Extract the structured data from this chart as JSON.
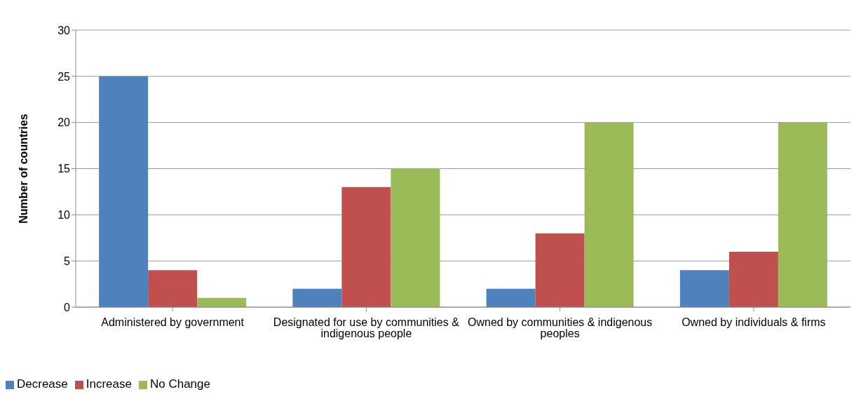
{
  "chart_data": {
    "type": "bar",
    "categories": [
      "Administered by government",
      "Designated for use by communities & indigenous people",
      "Owned by communities & indigenous peoples",
      "Owned by individuals & firms"
    ],
    "ylabel": "Number of countries",
    "ylim": [
      0,
      30
    ],
    "yticks": [
      0,
      5,
      10,
      15,
      20,
      25,
      30
    ],
    "grid": "y",
    "legend": "bottom left",
    "series": [
      {
        "name": "Decrease",
        "color": "#4f81bd",
        "values": [
          25,
          2,
          2,
          4
        ]
      },
      {
        "name": "Increase",
        "color": "#c0504d",
        "values": [
          4,
          13,
          8,
          6
        ]
      },
      {
        "name": "No Change",
        "color": "#9bbb59",
        "values": [
          1,
          15,
          20,
          20
        ]
      }
    ]
  }
}
